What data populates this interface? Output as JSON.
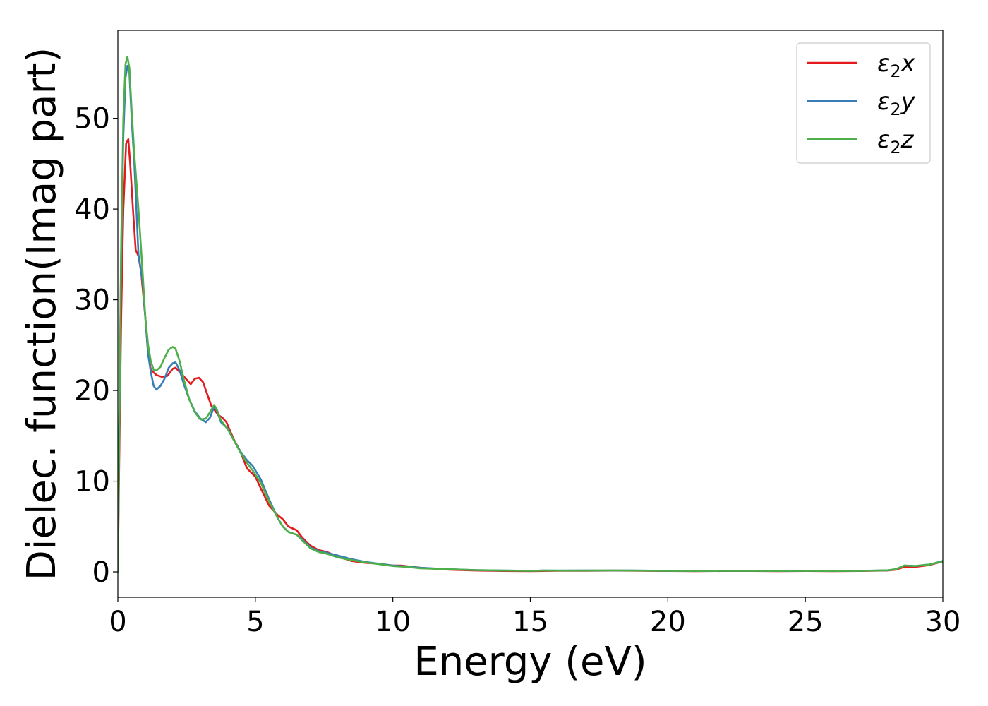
{
  "chart_data": {
    "type": "line",
    "xlabel": "Energy (eV)",
    "ylabel": "Dielec. function(Imag part)",
    "xlim": [
      0,
      30
    ],
    "ylim": [
      -2.8,
      59.7
    ],
    "xticks": [
      0,
      5,
      10,
      15,
      20,
      25,
      30
    ],
    "yticks": [
      0,
      10,
      20,
      30,
      40,
      50
    ],
    "grid": false,
    "legend_position": "top-right",
    "series": [
      {
        "name": "ε2x",
        "legend_base": "ε",
        "legend_sub": "2",
        "legend_suffix": "x",
        "color": "#e41a1c",
        "points": [
          [
            0,
            0
          ],
          [
            0.05,
            12
          ],
          [
            0.12,
            28
          ],
          [
            0.2,
            40
          ],
          [
            0.3,
            47.2
          ],
          [
            0.38,
            47.7
          ],
          [
            0.45,
            45
          ],
          [
            0.55,
            40
          ],
          [
            0.65,
            35.5
          ],
          [
            0.75,
            34.8
          ],
          [
            0.85,
            33
          ],
          [
            1.0,
            28
          ],
          [
            1.1,
            24
          ],
          [
            1.2,
            22.3
          ],
          [
            1.4,
            21.7
          ],
          [
            1.6,
            21.5
          ],
          [
            1.8,
            21.6
          ],
          [
            2.0,
            22.4
          ],
          [
            2.1,
            22.5
          ],
          [
            2.3,
            21.9
          ],
          [
            2.5,
            21.2
          ],
          [
            2.65,
            20.7
          ],
          [
            2.8,
            21.3
          ],
          [
            2.95,
            21.4
          ],
          [
            3.1,
            20.9
          ],
          [
            3.25,
            19.6
          ],
          [
            3.4,
            18.3
          ],
          [
            3.5,
            17.9
          ],
          [
            3.65,
            17.3
          ],
          [
            3.8,
            17.0
          ],
          [
            3.95,
            16.5
          ],
          [
            4.2,
            14.7
          ],
          [
            4.45,
            13.3
          ],
          [
            4.7,
            11.4
          ],
          [
            5.0,
            10.5
          ],
          [
            5.2,
            9.2
          ],
          [
            5.5,
            7.3
          ],
          [
            5.8,
            6.3
          ],
          [
            6.0,
            5.8
          ],
          [
            6.2,
            5.0
          ],
          [
            6.5,
            4.6
          ],
          [
            6.7,
            3.8
          ],
          [
            7.0,
            2.9
          ],
          [
            7.3,
            2.4
          ],
          [
            7.6,
            2.2
          ],
          [
            8.0,
            1.7
          ],
          [
            8.5,
            1.2
          ],
          [
            9.0,
            1.0
          ],
          [
            9.5,
            0.9
          ],
          [
            10.0,
            0.7
          ],
          [
            10.3,
            0.7
          ],
          [
            11.0,
            0.45
          ],
          [
            12.0,
            0.25
          ],
          [
            13.0,
            0.15
          ],
          [
            14.0,
            0.1
          ],
          [
            15.0,
            0.08
          ],
          [
            15.5,
            0.1
          ],
          [
            16.0,
            0.12
          ],
          [
            17.0,
            0.12
          ],
          [
            18.0,
            0.14
          ],
          [
            19.0,
            0.12
          ],
          [
            20.0,
            0.1
          ],
          [
            21.0,
            0.08
          ],
          [
            22.0,
            0.1
          ],
          [
            23.0,
            0.1
          ],
          [
            24.0,
            0.08
          ],
          [
            25.0,
            0.1
          ],
          [
            26.0,
            0.08
          ],
          [
            27.0,
            0.1
          ],
          [
            28.0,
            0.15
          ],
          [
            28.3,
            0.25
          ],
          [
            28.6,
            0.55
          ],
          [
            29.0,
            0.55
          ],
          [
            29.5,
            0.75
          ],
          [
            30.0,
            1.15
          ]
        ]
      },
      {
        "name": "ε2y",
        "legend_base": "ε",
        "legend_sub": "2",
        "legend_suffix": "y",
        "color": "#377eb8",
        "points": [
          [
            0,
            0
          ],
          [
            0.05,
            15
          ],
          [
            0.12,
            35
          ],
          [
            0.2,
            48
          ],
          [
            0.28,
            54.5
          ],
          [
            0.35,
            55.8
          ],
          [
            0.42,
            55
          ],
          [
            0.5,
            50
          ],
          [
            0.6,
            45
          ],
          [
            0.75,
            35
          ],
          [
            0.9,
            32
          ],
          [
            1.0,
            28
          ],
          [
            1.1,
            24
          ],
          [
            1.2,
            22
          ],
          [
            1.3,
            20.5
          ],
          [
            1.4,
            20.1
          ],
          [
            1.55,
            20.5
          ],
          [
            1.7,
            21.3
          ],
          [
            1.85,
            22.5
          ],
          [
            2.0,
            23.0
          ],
          [
            2.1,
            23.1
          ],
          [
            2.25,
            22.2
          ],
          [
            2.4,
            20.7
          ],
          [
            2.6,
            19.0
          ],
          [
            2.8,
            17.7
          ],
          [
            3.0,
            16.9
          ],
          [
            3.2,
            16.5
          ],
          [
            3.35,
            17.0
          ],
          [
            3.5,
            18.2
          ],
          [
            3.6,
            17.8
          ],
          [
            3.75,
            16.5
          ],
          [
            4.0,
            15.8
          ],
          [
            4.2,
            14.6
          ],
          [
            4.45,
            13.3
          ],
          [
            4.7,
            12.3
          ],
          [
            4.9,
            11.7
          ],
          [
            5.2,
            10.2
          ],
          [
            5.5,
            8.0
          ],
          [
            5.8,
            6.0
          ],
          [
            6.0,
            5.0
          ],
          [
            6.2,
            4.4
          ],
          [
            6.5,
            4.1
          ],
          [
            6.7,
            3.6
          ],
          [
            7.0,
            2.7
          ],
          [
            7.3,
            2.3
          ],
          [
            7.6,
            2.1
          ],
          [
            8.0,
            1.8
          ],
          [
            8.5,
            1.4
          ],
          [
            9.0,
            1.1
          ],
          [
            9.5,
            0.9
          ],
          [
            10.0,
            0.7
          ],
          [
            10.5,
            0.6
          ],
          [
            11.0,
            0.45
          ],
          [
            12.0,
            0.3
          ],
          [
            13.0,
            0.2
          ],
          [
            14.0,
            0.15
          ],
          [
            15.0,
            0.12
          ],
          [
            15.5,
            0.15
          ],
          [
            16.0,
            0.14
          ],
          [
            17.0,
            0.15
          ],
          [
            18.0,
            0.16
          ],
          [
            19.0,
            0.14
          ],
          [
            20.0,
            0.12
          ],
          [
            21.0,
            0.1
          ],
          [
            22.0,
            0.12
          ],
          [
            23.0,
            0.12
          ],
          [
            24.0,
            0.1
          ],
          [
            25.0,
            0.12
          ],
          [
            26.0,
            0.1
          ],
          [
            27.0,
            0.12
          ],
          [
            28.0,
            0.17
          ],
          [
            28.3,
            0.3
          ],
          [
            28.6,
            0.7
          ],
          [
            29.0,
            0.65
          ],
          [
            29.5,
            0.8
          ],
          [
            30.0,
            1.2
          ]
        ]
      },
      {
        "name": "ε2z",
        "legend_base": "ε",
        "legend_sub": "2",
        "legend_suffix": "z",
        "color": "#4daf4a",
        "points": [
          [
            0,
            0
          ],
          [
            0.05,
            15
          ],
          [
            0.12,
            36
          ],
          [
            0.2,
            50
          ],
          [
            0.28,
            56
          ],
          [
            0.35,
            56.8
          ],
          [
            0.42,
            55.5
          ],
          [
            0.5,
            51
          ],
          [
            0.6,
            46
          ],
          [
            0.75,
            40
          ],
          [
            0.9,
            33
          ],
          [
            1.0,
            28
          ],
          [
            1.1,
            25
          ],
          [
            1.2,
            23.2
          ],
          [
            1.3,
            22.3
          ],
          [
            1.4,
            22.2
          ],
          [
            1.55,
            22.6
          ],
          [
            1.7,
            23.6
          ],
          [
            1.85,
            24.5
          ],
          [
            2.0,
            24.8
          ],
          [
            2.1,
            24.6
          ],
          [
            2.25,
            23.2
          ],
          [
            2.4,
            21.2
          ],
          [
            2.6,
            19.0
          ],
          [
            2.8,
            17.6
          ],
          [
            3.0,
            16.8
          ],
          [
            3.2,
            16.9
          ],
          [
            3.35,
            17.6
          ],
          [
            3.5,
            18.4
          ],
          [
            3.6,
            17.9
          ],
          [
            3.75,
            16.7
          ],
          [
            4.0,
            15.7
          ],
          [
            4.2,
            14.6
          ],
          [
            4.45,
            13.2
          ],
          [
            4.7,
            12.0
          ],
          [
            4.9,
            11.2
          ],
          [
            5.2,
            9.8
          ],
          [
            5.5,
            7.8
          ],
          [
            5.8,
            6.0
          ],
          [
            6.0,
            5.0
          ],
          [
            6.2,
            4.4
          ],
          [
            6.5,
            4.1
          ],
          [
            6.7,
            3.5
          ],
          [
            7.0,
            2.6
          ],
          [
            7.3,
            2.2
          ],
          [
            7.6,
            2.0
          ],
          [
            8.0,
            1.6
          ],
          [
            8.5,
            1.3
          ],
          [
            9.0,
            1.05
          ],
          [
            9.5,
            0.85
          ],
          [
            10.0,
            0.65
          ],
          [
            10.5,
            0.55
          ],
          [
            11.0,
            0.4
          ],
          [
            12.0,
            0.3
          ],
          [
            13.0,
            0.2
          ],
          [
            14.0,
            0.15
          ],
          [
            15.0,
            0.12
          ],
          [
            15.5,
            0.15
          ],
          [
            16.0,
            0.14
          ],
          [
            17.0,
            0.15
          ],
          [
            18.0,
            0.16
          ],
          [
            19.0,
            0.14
          ],
          [
            20.0,
            0.12
          ],
          [
            21.0,
            0.1
          ],
          [
            22.0,
            0.12
          ],
          [
            23.0,
            0.12
          ],
          [
            24.0,
            0.1
          ],
          [
            25.0,
            0.12
          ],
          [
            26.0,
            0.1
          ],
          [
            27.0,
            0.12
          ],
          [
            28.0,
            0.17
          ],
          [
            28.3,
            0.3
          ],
          [
            28.6,
            0.7
          ],
          [
            29.0,
            0.65
          ],
          [
            29.5,
            0.8
          ],
          [
            30.0,
            1.15
          ]
        ]
      }
    ]
  }
}
